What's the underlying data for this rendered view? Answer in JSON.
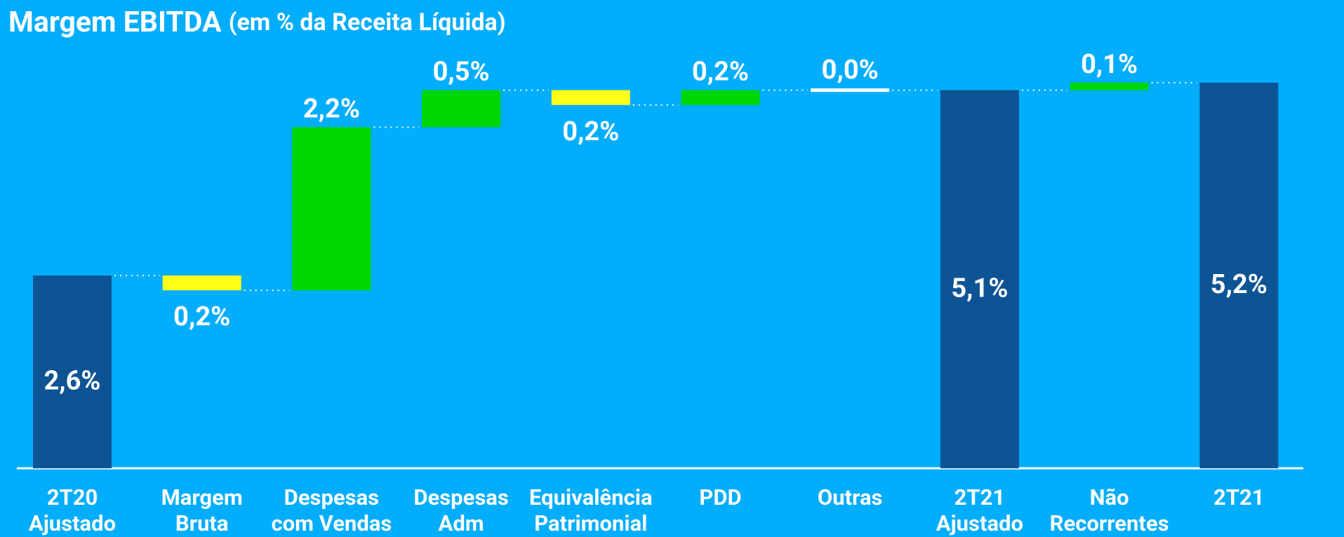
{
  "chart_data": {
    "type": "waterfall",
    "title": "Margem EBITDA",
    "subtitle": "(em % da Receita Líquida)",
    "categories": [
      [
        "2T20",
        "Ajustado"
      ],
      [
        "Margem",
        "Bruta"
      ],
      [
        "Despesas",
        "com Vendas"
      ],
      [
        "Despesas",
        "Adm"
      ],
      [
        "Equivalência",
        "Patrimonial"
      ],
      [
        "PDD"
      ],
      [
        "Outras"
      ],
      [
        "2T21",
        "Ajustado"
      ],
      [
        "Não",
        "Recorrentes"
      ],
      [
        "2T21"
      ]
    ],
    "values": [
      2.6,
      -0.2,
      2.2,
      0.5,
      -0.2,
      0.2,
      0.0,
      5.1,
      0.1,
      5.2
    ],
    "value_labels": [
      "2,6%",
      "0,2%",
      "2,2%",
      "0,5%",
      "0,2%",
      "0,2%",
      "0,0%",
      "5,1%",
      "0,1%",
      "5,2%"
    ],
    "measure": [
      "total",
      "relative",
      "relative",
      "relative",
      "relative",
      "relative",
      "relative",
      "total",
      "relative",
      "total"
    ],
    "colors": [
      "#0d5495",
      "#ffff1a",
      "#00d600",
      "#00d600",
      "#ffff1a",
      "#00d600",
      "#ffffff",
      "#0d5495",
      "#00d600",
      "#0d5495"
    ]
  }
}
